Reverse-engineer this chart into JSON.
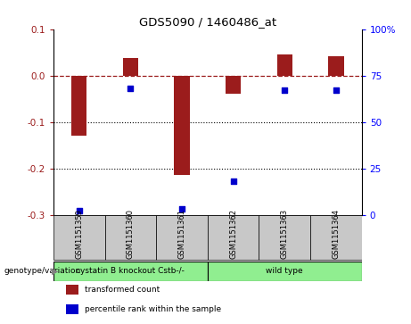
{
  "title": "GDS5090 / 1460486_at",
  "samples": [
    "GSM1151359",
    "GSM1151360",
    "GSM1151361",
    "GSM1151362",
    "GSM1151363",
    "GSM1151364"
  ],
  "bar_values": [
    -0.13,
    0.038,
    -0.215,
    -0.04,
    0.045,
    0.042
  ],
  "percentile_values": [
    2,
    68,
    3,
    18,
    67,
    67
  ],
  "bar_color": "#9B1C1C",
  "point_color": "#0000CC",
  "ylim_left": [
    -0.3,
    0.1
  ],
  "ylim_right": [
    0,
    100
  ],
  "yticks_left": [
    0.1,
    0.0,
    -0.1,
    -0.2,
    -0.3
  ],
  "yticks_right": [
    100,
    75,
    50,
    25,
    0
  ],
  "hline_y": 0.0,
  "dotted_lines": [
    -0.1,
    -0.2
  ],
  "groups": [
    {
      "label": "cystatin B knockout Cstb-/-",
      "indices": [
        0,
        1,
        2
      ],
      "color": "#90EE90"
    },
    {
      "label": "wild type",
      "indices": [
        3,
        4,
        5
      ],
      "color": "#90EE90"
    }
  ],
  "group_row_label": "genotype/variation",
  "legend_items": [
    {
      "color": "#9B1C1C",
      "label": "transformed count"
    },
    {
      "color": "#0000CC",
      "label": "percentile rank within the sample"
    }
  ],
  "background_color": "#ffffff",
  "plot_bg": "#ffffff",
  "bar_width": 0.3,
  "sample_box_color": "#C8C8C8"
}
